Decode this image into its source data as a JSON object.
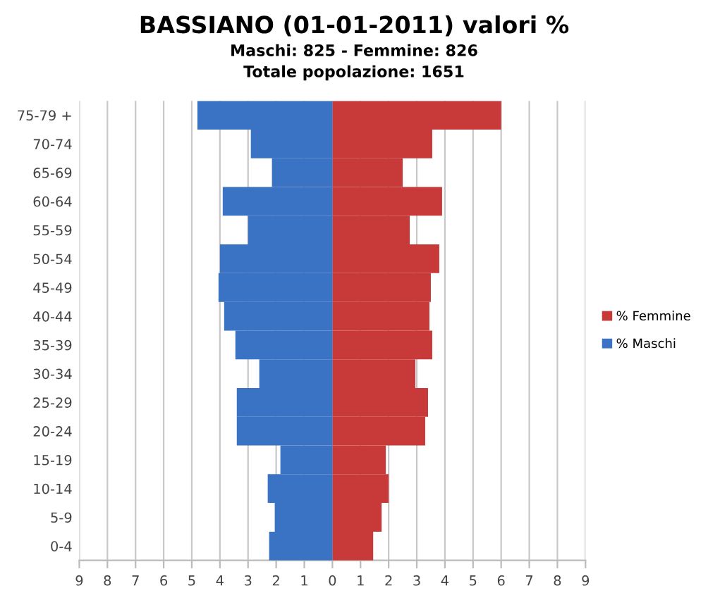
{
  "chart_data": {
    "type": "bar",
    "orientation": "horizontal",
    "stacked": true,
    "title": "BASSIANO (01-01-2011) valori %",
    "subtitle": "Maschi: 825 - Femmine: 826\nTotale popolazione: 1651",
    "categories": [
      "75-79 +",
      "70-74",
      "65-69",
      "60-64",
      "55-59",
      "50-54",
      "45-49",
      "40-44",
      "35-39",
      "30-34",
      "25-29",
      "20-24",
      "15-19",
      "10-14",
      "5-9",
      "0-4"
    ],
    "series": [
      {
        "name": "% Femmine",
        "color": "#c83a3a",
        "values": [
          6.0,
          3.55,
          2.5,
          3.9,
          2.75,
          3.8,
          3.5,
          3.45,
          3.55,
          2.95,
          3.4,
          3.3,
          1.9,
          2.0,
          1.75,
          1.45
        ]
      },
      {
        "name": "% Maschi",
        "color": "#3a72c4",
        "values": [
          -4.8,
          -2.9,
          -2.15,
          -3.9,
          -3.0,
          -4.0,
          -4.05,
          -3.85,
          -3.45,
          -2.6,
          -3.4,
          -3.4,
          -1.85,
          -2.3,
          -2.05,
          -2.25
        ]
      }
    ],
    "xlim": [
      -9,
      9
    ],
    "xticks": [
      {
        "value": -9,
        "label": "9"
      },
      {
        "value": -8,
        "label": "8"
      },
      {
        "value": -7,
        "label": "7"
      },
      {
        "value": -6,
        "label": "6"
      },
      {
        "value": -5,
        "label": "5"
      },
      {
        "value": -4,
        "label": "4"
      },
      {
        "value": -3,
        "label": "3"
      },
      {
        "value": -2,
        "label": "2"
      },
      {
        "value": -1,
        "label": "1"
      },
      0,
      1,
      2,
      3,
      4,
      5,
      6,
      7,
      8,
      9
    ],
    "grid": "x",
    "legend": "right"
  }
}
